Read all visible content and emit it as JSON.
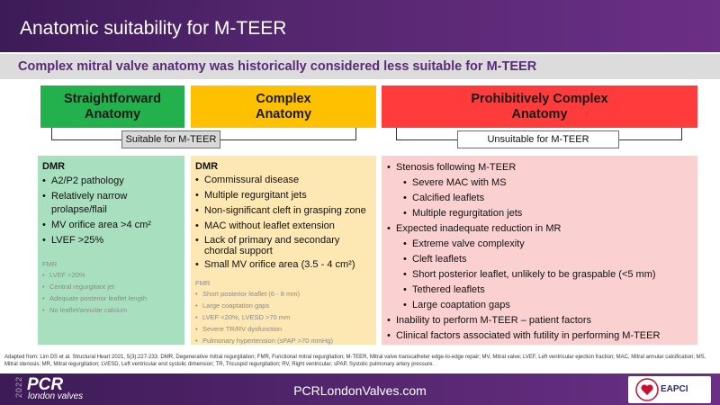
{
  "slide": {
    "title": "Anatomic suitability for M-TEER",
    "subtitle": "Complex mitral valve anatomy was historically considered less suitable for M-TEER"
  },
  "categories": [
    {
      "label": "Straightforward Anatomy",
      "color": "#22b14c"
    },
    {
      "label": "Complex Anatomy",
      "color": "#ffc000"
    },
    {
      "label": "Prohibitively Complex Anatomy",
      "color": "#ff3b3b"
    }
  ],
  "tags": {
    "suitable": "Suitable for M-TEER",
    "unsuitable": "Unsuitable  for M-TEER"
  },
  "panels": {
    "straightforward": {
      "heading": "DMR",
      "items": [
        "A2/P2 pathology",
        "Relatively narrow prolapse/flail",
        "MV orifice area >4 cm²",
        "LVEF >25%"
      ],
      "fmr_heading": "FMR",
      "fmr_items": [
        "LVEF >20%",
        "Central regurgitant jet",
        "Adequate posterior leaflet length",
        "No leaflet/annular calcium"
      ]
    },
    "complex": {
      "heading": "DMR",
      "items": [
        "Commissural disease",
        "Multiple regurgitant jets",
        "Non-significant cleft in grasping zone",
        "MAC without leaflet extension",
        "Lack of primary and secondary chordal support",
        "Small MV orifice area (3.5 - 4 cm²)"
      ],
      "fmr_heading": "FMR",
      "fmr_items": [
        "Short posterior leaflet (6 - 8 mm)",
        "Large coaptation gaps",
        "LVEF <20%, LVESD >70 mm",
        "Severe TR/RV dysfunction",
        "Pulmonary hypertension (sPAP >70 mmHg)"
      ]
    },
    "prohibitive": {
      "items": [
        {
          "text": "Stenosis following M-TEER",
          "level": 0
        },
        {
          "text": "Severe MAC with MS",
          "level": 1
        },
        {
          "text": "Calcified leaflets",
          "level": 1
        },
        {
          "text": "Multiple regurgitation jets",
          "level": 1
        },
        {
          "text": "Expected inadequate reduction in MR",
          "level": 0
        },
        {
          "text": "Extreme valve complexity",
          "level": 1
        },
        {
          "text": "Cleft leaflets",
          "level": 1
        },
        {
          "text": "Short posterior leaflet, unlikely to be graspable (<5 mm)",
          "level": 1
        },
        {
          "text": "Tethered leaflets",
          "level": 1
        },
        {
          "text": "Large coaptation gaps",
          "level": 1
        },
        {
          "text": "Inability to perform M-TEER – patient factors",
          "level": 0
        },
        {
          "text": "Clinical factors associated with futility in performing M-TEER",
          "level": 0
        }
      ]
    }
  },
  "footnote": "Adapted from: Lim DS et al. Structural Heart 2021, 5(3):227-233. DMR, Degenerative mitral regurgitation; FMR, Functional mitral regurgitation; M-TEER, Mitral valve transcatheter edge-to-edge repair; MV, Mitral valve; LVEF, Left ventricular ejection fraction; MAC, Mitral annular calcification; MS, Mitral stenosis; MR, Mitral regurgitation; LVESD, Left ventricular end systolic dimension; TR, Tricuspid regurgitation; RV, Right ventricular; sPAP, Systolic pulmonary artery pressure.",
  "footer": {
    "year": "2022",
    "brand": "PCR",
    "brand_sub": "london valves",
    "url": "PCRLondonValves.com",
    "partner": "EAPCI"
  }
}
